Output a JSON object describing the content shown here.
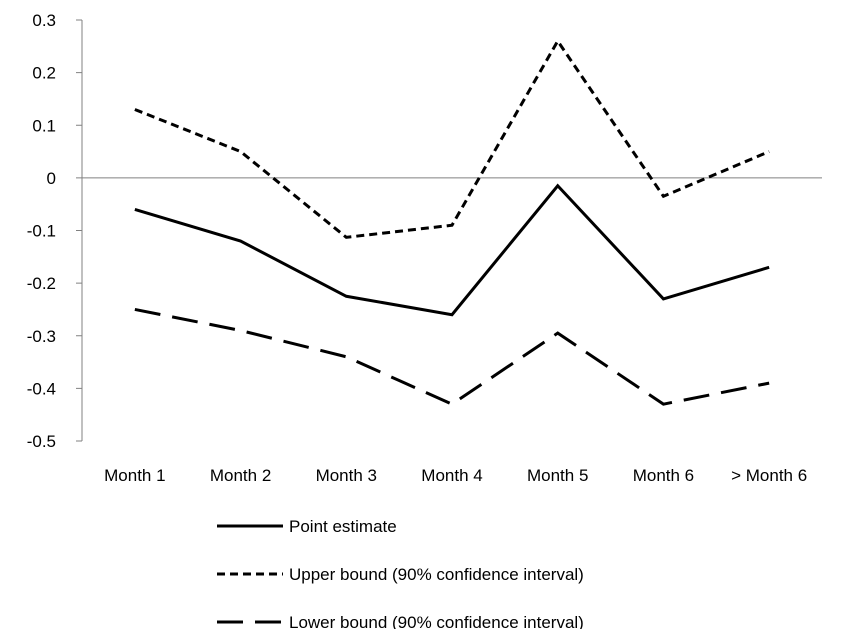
{
  "chart_data": {
    "type": "line",
    "title": "",
    "xlabel": "",
    "ylabel": "",
    "categories": [
      "Month 1",
      "Month 2",
      "Month 3",
      "Month 4",
      "Month 5",
      "Month 6",
      "> Month 6"
    ],
    "ylim": [
      -0.5,
      0.3
    ],
    "yticks": [
      0.3,
      0.2,
      0.1,
      0,
      -0.1,
      -0.2,
      -0.3,
      -0.4,
      -0.5
    ],
    "ytick_labels": [
      "0.3",
      "0.2",
      "0.1",
      "0",
      "-0.1",
      "-0.2",
      "-0.3",
      "-0.4",
      "-0.5"
    ],
    "grid": false,
    "zero_line": true,
    "legend_position": "bottom",
    "series": [
      {
        "name": "Point estimate",
        "style": "solid",
        "color": "#000000",
        "values": [
          -0.06,
          -0.12,
          -0.225,
          -0.26,
          -0.015,
          -0.23,
          -0.17
        ]
      },
      {
        "name": "Upper bound (90% confidence interval)",
        "style": "short-dash",
        "color": "#000000",
        "values": [
          0.13,
          0.05,
          -0.113,
          -0.09,
          0.26,
          -0.035,
          0.05
        ]
      },
      {
        "name": "Lower bound (90% confidence interval)",
        "style": "long-dash",
        "color": "#000000",
        "values": [
          -0.25,
          -0.29,
          -0.34,
          -0.43,
          -0.295,
          -0.43,
          -0.39
        ]
      }
    ]
  }
}
